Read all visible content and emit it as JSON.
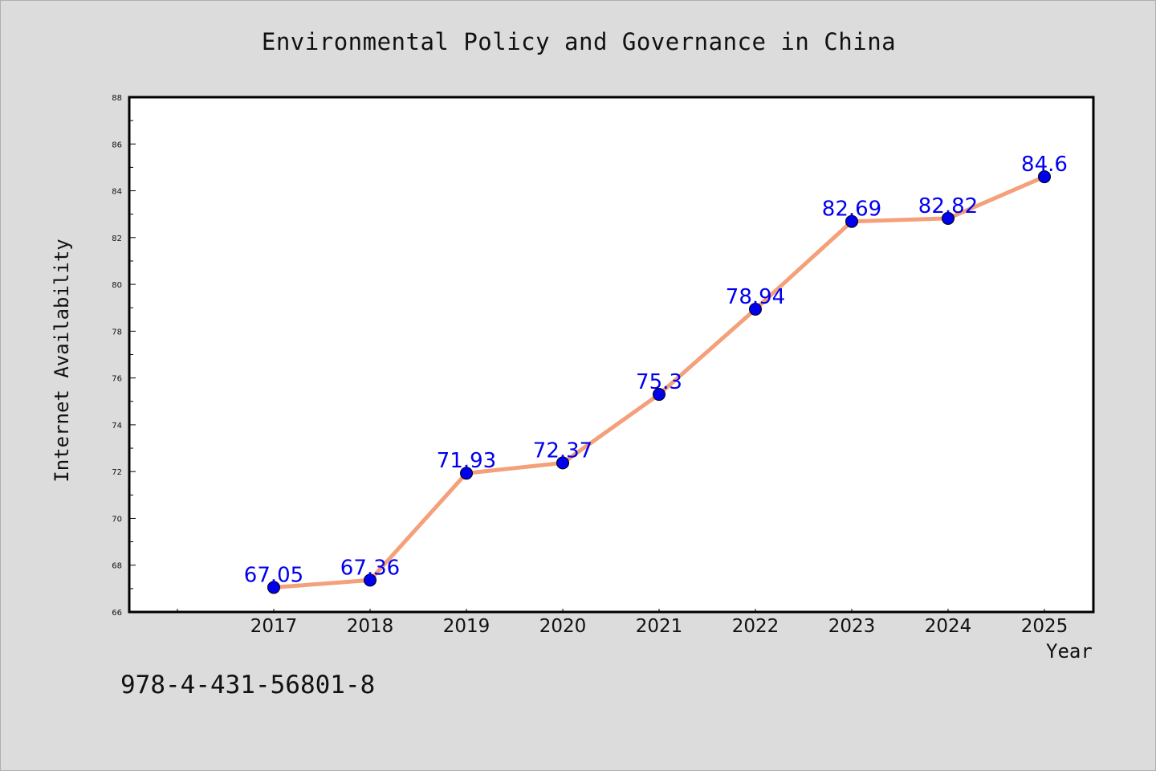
{
  "chart_data": {
    "type": "line",
    "title": "Environmental Policy and Governance in China",
    "xlabel": "Year",
    "ylabel": "Internet Availability",
    "x": [
      "2017",
      "2018",
      "2019",
      "2020",
      "2021",
      "2022",
      "2023",
      "2024",
      "2025"
    ],
    "series": [
      {
        "values": [
          67.05,
          67.36,
          71.93,
          72.37,
          75.3,
          78.94,
          82.69,
          82.82,
          84.6
        ],
        "labels": [
          "67.05",
          "67.36",
          "71.93",
          "72.37",
          "75.3",
          "78.94",
          "82.69",
          "82.82",
          "84.6"
        ],
        "line_color": "#f4a07a",
        "marker_color": "#0000ee"
      }
    ],
    "ylim": [
      66,
      88
    ],
    "yticks": [
      "66",
      "68",
      "70",
      "72",
      "74",
      "76",
      "78",
      "80",
      "82",
      "84",
      "86",
      "88"
    ],
    "grid": false,
    "legend": "none"
  },
  "footer": {
    "code": "978-4-431-56801-8"
  }
}
